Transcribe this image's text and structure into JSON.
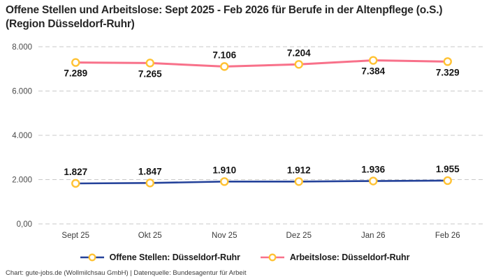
{
  "title": "Offene Stellen und Arbeitslose: Sept 2025 - Feb 2026 für Berufe in der Altenpflege (o.S.) (Region Düsseldorf-Ruhr)",
  "footer": "Chart: gute-jobs.de (Wollmilchsau GmbH) | Datenquelle: Bundesagentur für Arbeit",
  "colors": {
    "blue": "#24429a",
    "pink": "#f8718a",
    "marker": "#ffc233",
    "grid": "#c9c9c9",
    "axis_text": "#4a4a4a",
    "xaxis_text": "#3a3a3a",
    "data_label": "#141414"
  },
  "chart_data": {
    "type": "line",
    "title": "Offene Stellen und Arbeitslose: Sept 2025 - Feb 2026 für Berufe in der Altenpflege (o.S.) (Region Düsseldorf-Ruhr)",
    "categories": [
      "Sept 25",
      "Okt 25",
      "Nov 25",
      "Dez 25",
      "Jan 26",
      "Feb 26"
    ],
    "series": [
      {
        "name": "Offene Stellen: Düsseldorf-Ruhr",
        "values": [
          1827,
          1847,
          1910,
          1912,
          1936,
          1955
        ],
        "labels": [
          "1.827",
          "1.847",
          "1.910",
          "1.912",
          "1.936",
          "1.955"
        ],
        "color_key": "blue",
        "line_width": 2.6,
        "label_positions": [
          "above",
          "above",
          "above",
          "above",
          "above",
          "above"
        ]
      },
      {
        "name": "Arbeitslose: Düsseldorf-Ruhr",
        "values": [
          7289,
          7265,
          7106,
          7204,
          7384,
          7329
        ],
        "labels": [
          "7.289",
          "7.265",
          "7.106",
          "7.204",
          "7.384",
          "7.329"
        ],
        "color_key": "pink",
        "line_width": 3,
        "label_positions": [
          "below",
          "below",
          "above",
          "above",
          "below",
          "below"
        ]
      }
    ],
    "xlabel": "",
    "ylabel": "",
    "ylim": [
      0,
      8000
    ],
    "yticks": [
      0,
      2000,
      4000,
      6000,
      8000
    ],
    "ytick_labels": [
      "0,00",
      "2.000",
      "4.000",
      "6.000",
      "8.000"
    ],
    "grid": "horizontal-dashed",
    "legend_position": "bottom",
    "marker": "circle-white-fill-yellow-ring"
  }
}
